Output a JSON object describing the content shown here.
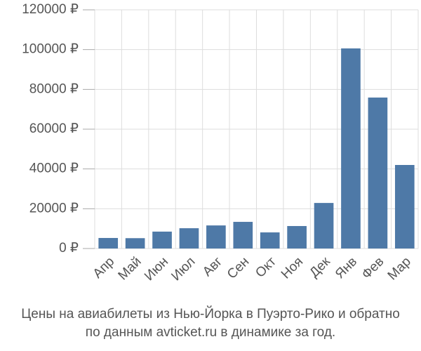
{
  "chart_data": {
    "type": "bar",
    "title": "Цены на авиабилеты из Нью-Йорка в Пуэрто-Рико и обратно",
    "subtitle": "по данным avticket.ru в динамике за год.",
    "categories": [
      "Апр",
      "Май",
      "Июн",
      "Июл",
      "Авг",
      "Сен",
      "Окт",
      "Ноя",
      "Дек",
      "Янв",
      "Фев",
      "Мар"
    ],
    "values": [
      5300,
      5200,
      8500,
      10200,
      11600,
      13400,
      8100,
      11300,
      22900,
      100600,
      75900,
      42000
    ],
    "color": "#4e79a7",
    "ylim": [
      0,
      120000
    ],
    "yticks": [
      {
        "value": 0,
        "label": "0 ₽"
      },
      {
        "value": 20000,
        "label": "20000 ₽"
      },
      {
        "value": 40000,
        "label": "40000 ₽"
      },
      {
        "value": 60000,
        "label": "60000 ₽"
      },
      {
        "value": 80000,
        "label": "80000 ₽"
      },
      {
        "value": 100000,
        "label": "100000 ₽"
      },
      {
        "value": 120000,
        "label": "120000 ₽"
      }
    ],
    "grid": true
  }
}
